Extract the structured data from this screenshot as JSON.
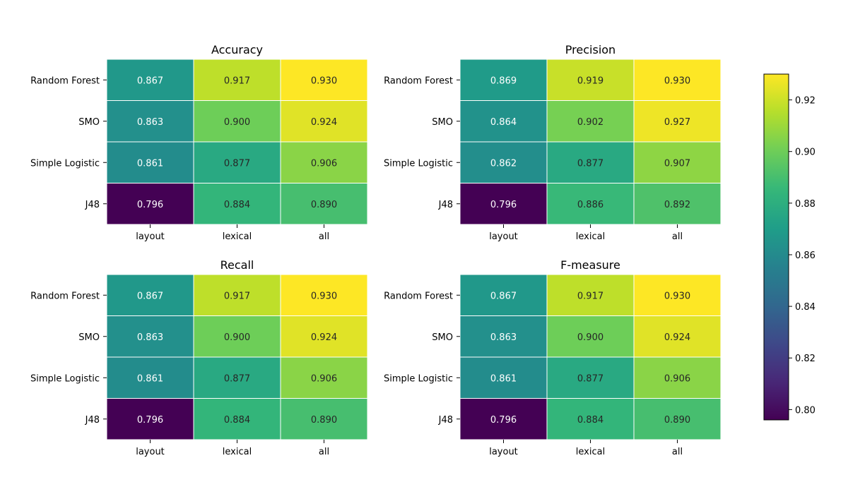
{
  "chart_data": {
    "type": "heatmap",
    "rows": [
      "Random Forest",
      "SMO",
      "Simple Logistic",
      "J48"
    ],
    "columns": [
      "layout",
      "lexical",
      "all"
    ],
    "colorscale": "viridis",
    "color_range": [
      0.796,
      0.93
    ],
    "colorbar_ticks": [
      0.8,
      0.82,
      0.84,
      0.86,
      0.88,
      0.9,
      0.92
    ],
    "panels": [
      {
        "title": "Accuracy",
        "values": [
          [
            0.867,
            0.917,
            0.93
          ],
          [
            0.863,
            0.9,
            0.924
          ],
          [
            0.861,
            0.877,
            0.906
          ],
          [
            0.796,
            0.884,
            0.89
          ]
        ]
      },
      {
        "title": "Precision",
        "values": [
          [
            0.869,
            0.919,
            0.93
          ],
          [
            0.864,
            0.902,
            0.927
          ],
          [
            0.862,
            0.877,
            0.907
          ],
          [
            0.796,
            0.886,
            0.892
          ]
        ]
      },
      {
        "title": "Recall",
        "values": [
          [
            0.867,
            0.917,
            0.93
          ],
          [
            0.863,
            0.9,
            0.924
          ],
          [
            0.861,
            0.877,
            0.906
          ],
          [
            0.796,
            0.884,
            0.89
          ]
        ]
      },
      {
        "title": "F-measure",
        "values": [
          [
            0.867,
            0.917,
            0.93
          ],
          [
            0.863,
            0.9,
            0.924
          ],
          [
            0.861,
            0.877,
            0.906
          ],
          [
            0.796,
            0.884,
            0.89
          ]
        ]
      }
    ]
  }
}
